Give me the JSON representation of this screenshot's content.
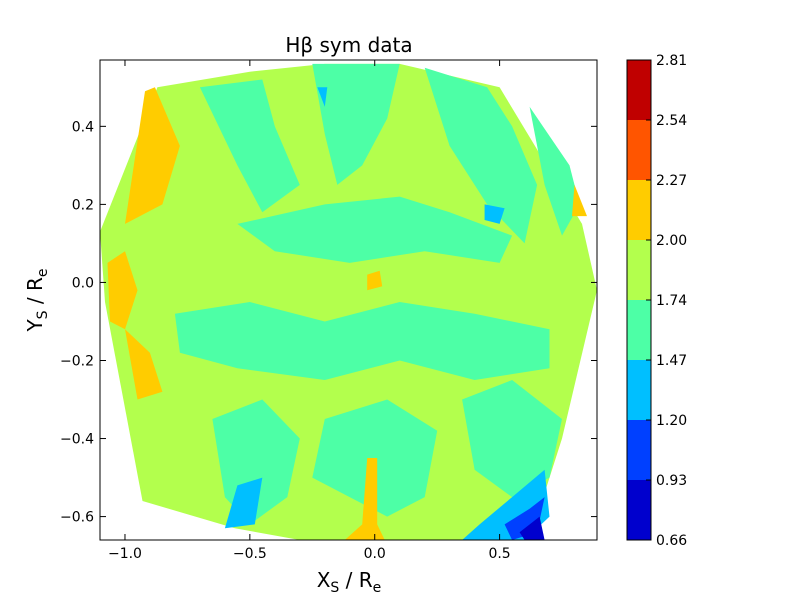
{
  "chart_data": {
    "type": "heatmap",
    "title": "Hβ sym data",
    "xlabel": {
      "main": "X",
      "sub": "S",
      "mid": " / R",
      "sub2": "e"
    },
    "ylabel": {
      "main": "Y",
      "sub": "S",
      "mid": " / R",
      "sub2": "e"
    },
    "xlim": [
      -1.1,
      0.89
    ],
    "ylim": [
      -0.66,
      0.57
    ],
    "x_ticks": [
      -1.0,
      -0.5,
      0.0,
      0.5
    ],
    "x_tick_labels": [
      "−1.0",
      "−0.5",
      "0.0",
      "0.5"
    ],
    "y_ticks": [
      -0.6,
      -0.4,
      -0.2,
      0.0,
      0.2,
      0.4
    ],
    "y_tick_labels": [
      "−0.6",
      "−0.4",
      "−0.2",
      "0.0",
      "0.2",
      "0.4"
    ],
    "grid": false,
    "colorbar": {
      "position": "right",
      "levels": [
        0.66,
        0.93,
        1.2,
        1.47,
        1.74,
        2.0,
        2.27,
        2.54,
        2.81
      ],
      "level_labels": [
        "0.66",
        "0.93",
        "1.20",
        "1.47",
        "1.74",
        "2.00",
        "2.27",
        "2.54",
        "2.81"
      ],
      "colors": [
        "#0000cd",
        "#0040ff",
        "#00bfff",
        "#4dffa6",
        "#b3ff4d",
        "#ffcc00",
        "#ff5500",
        "#c00000"
      ]
    },
    "background_level_color": "#b3ff4d",
    "footprint": [
      [
        -0.87,
        0.5
      ],
      [
        -0.5,
        0.54
      ],
      [
        -0.2,
        0.56
      ],
      [
        0.1,
        0.56
      ],
      [
        0.5,
        0.5
      ],
      [
        0.83,
        0.15
      ],
      [
        0.89,
        -0.02
      ],
      [
        0.75,
        -0.4
      ],
      [
        0.65,
        -0.6
      ],
      [
        0.6,
        -0.66
      ],
      [
        -0.3,
        -0.66
      ],
      [
        -0.56,
        -0.63
      ],
      [
        -0.93,
        -0.56
      ],
      [
        -1.08,
        -0.05
      ],
      [
        -1.1,
        0.13
      ]
    ],
    "regions": [
      {
        "level": "1.47-1.74",
        "points": [
          [
            -0.7,
            0.5
          ],
          [
            -0.45,
            0.52
          ],
          [
            -0.4,
            0.4
          ],
          [
            -0.3,
            0.25
          ],
          [
            -0.45,
            0.18
          ],
          [
            -0.55,
            0.3
          ]
        ]
      },
      {
        "level": "1.47-1.74",
        "points": [
          [
            -0.25,
            0.56
          ],
          [
            0.1,
            0.56
          ],
          [
            0.05,
            0.42
          ],
          [
            -0.05,
            0.3
          ],
          [
            -0.15,
            0.25
          ],
          [
            -0.2,
            0.38
          ]
        ]
      },
      {
        "level": "1.47-1.74",
        "points": [
          [
            0.2,
            0.55
          ],
          [
            0.45,
            0.5
          ],
          [
            0.55,
            0.4
          ],
          [
            0.65,
            0.25
          ],
          [
            0.6,
            0.1
          ],
          [
            0.45,
            0.2
          ],
          [
            0.3,
            0.35
          ]
        ]
      },
      {
        "level": "1.47-1.74",
        "points": [
          [
            0.62,
            0.45
          ],
          [
            0.78,
            0.3
          ],
          [
            0.82,
            0.2
          ],
          [
            0.75,
            0.12
          ],
          [
            0.68,
            0.25
          ]
        ]
      },
      {
        "level": "1.47-1.74",
        "points": [
          [
            -0.55,
            0.15
          ],
          [
            -0.2,
            0.2
          ],
          [
            0.1,
            0.22
          ],
          [
            0.3,
            0.18
          ],
          [
            0.55,
            0.12
          ],
          [
            0.5,
            0.05
          ],
          [
            0.2,
            0.08
          ],
          [
            -0.1,
            0.05
          ],
          [
            -0.4,
            0.08
          ]
        ]
      },
      {
        "level": "1.47-1.74",
        "points": [
          [
            -0.8,
            -0.08
          ],
          [
            -0.5,
            -0.05
          ],
          [
            -0.2,
            -0.1
          ],
          [
            0.1,
            -0.05
          ],
          [
            0.4,
            -0.08
          ],
          [
            0.7,
            -0.12
          ],
          [
            0.7,
            -0.22
          ],
          [
            0.4,
            -0.25
          ],
          [
            0.1,
            -0.2
          ],
          [
            -0.2,
            -0.25
          ],
          [
            -0.55,
            -0.22
          ],
          [
            -0.78,
            -0.18
          ]
        ]
      },
      {
        "level": "1.47-1.74",
        "points": [
          [
            -0.65,
            -0.35
          ],
          [
            -0.45,
            -0.3
          ],
          [
            -0.3,
            -0.4
          ],
          [
            -0.35,
            -0.55
          ],
          [
            -0.5,
            -0.62
          ],
          [
            -0.6,
            -0.55
          ]
        ]
      },
      {
        "level": "1.47-1.74",
        "points": [
          [
            -0.2,
            -0.35
          ],
          [
            0.05,
            -0.3
          ],
          [
            0.25,
            -0.38
          ],
          [
            0.2,
            -0.55
          ],
          [
            0.05,
            -0.6
          ],
          [
            -0.1,
            -0.55
          ],
          [
            -0.25,
            -0.5
          ]
        ]
      },
      {
        "level": "1.47-1.74",
        "points": [
          [
            0.35,
            -0.3
          ],
          [
            0.55,
            -0.25
          ],
          [
            0.75,
            -0.35
          ],
          [
            0.7,
            -0.5
          ],
          [
            0.55,
            -0.55
          ],
          [
            0.4,
            -0.48
          ]
        ]
      },
      {
        "level": "1.20-1.47",
        "points": [
          [
            -0.55,
            -0.52
          ],
          [
            -0.45,
            -0.5
          ],
          [
            -0.48,
            -0.62
          ],
          [
            -0.6,
            -0.63
          ]
        ]
      },
      {
        "level": "1.20-1.47",
        "points": [
          [
            0.42,
            -0.62
          ],
          [
            0.55,
            -0.55
          ],
          [
            0.68,
            -0.48
          ],
          [
            0.7,
            -0.6
          ],
          [
            0.6,
            -0.66
          ],
          [
            0.35,
            -0.66
          ]
        ]
      },
      {
        "level": "1.20-1.47",
        "points": [
          [
            0.44,
            0.2
          ],
          [
            0.52,
            0.19
          ],
          [
            0.5,
            0.15
          ],
          [
            0.44,
            0.16
          ]
        ]
      },
      {
        "level": "1.20-1.47",
        "points": [
          [
            -0.23,
            0.5
          ],
          [
            -0.2,
            0.45
          ],
          [
            -0.19,
            0.5
          ]
        ]
      },
      {
        "level": "0.93-1.20",
        "points": [
          [
            0.52,
            -0.62
          ],
          [
            0.62,
            -0.58
          ],
          [
            0.68,
            -0.55
          ],
          [
            0.65,
            -0.64
          ],
          [
            0.55,
            -0.66
          ]
        ]
      },
      {
        "level": "0.66-0.93",
        "points": [
          [
            0.58,
            -0.64
          ],
          [
            0.66,
            -0.6
          ],
          [
            0.68,
            -0.66
          ],
          [
            0.6,
            -0.66
          ]
        ]
      },
      {
        "level": "2.00-2.27",
        "points": [
          [
            -0.92,
            0.49
          ],
          [
            -0.88,
            0.5
          ],
          [
            -0.78,
            0.35
          ],
          [
            -0.85,
            0.2
          ],
          [
            -1.0,
            0.15
          ]
        ]
      },
      {
        "level": "2.00-2.27",
        "points": [
          [
            -1.07,
            0.05
          ],
          [
            -1.0,
            0.08
          ],
          [
            -0.95,
            -0.02
          ],
          [
            -1.0,
            -0.12
          ],
          [
            -1.06,
            -0.1
          ]
        ]
      },
      {
        "level": "2.00-2.27",
        "points": [
          [
            -1.0,
            -0.12
          ],
          [
            -0.9,
            -0.18
          ],
          [
            -0.85,
            -0.28
          ],
          [
            -0.95,
            -0.3
          ]
        ]
      },
      {
        "level": "2.00-2.27",
        "points": [
          [
            0.8,
            0.25
          ],
          [
            0.85,
            0.17
          ],
          [
            0.79,
            0.17
          ]
        ]
      },
      {
        "level": "2.00-2.27",
        "points": [
          [
            -0.03,
            -0.45
          ],
          [
            0.01,
            -0.45
          ],
          [
            0.01,
            -0.62
          ],
          [
            0.04,
            -0.66
          ],
          [
            -0.12,
            -0.66
          ],
          [
            -0.05,
            -0.62
          ]
        ]
      },
      {
        "level": "2.00-2.27",
        "points": [
          [
            -0.03,
            0.02
          ],
          [
            0.02,
            0.03
          ],
          [
            0.03,
            -0.01
          ],
          [
            -0.03,
            -0.02
          ]
        ]
      }
    ]
  }
}
